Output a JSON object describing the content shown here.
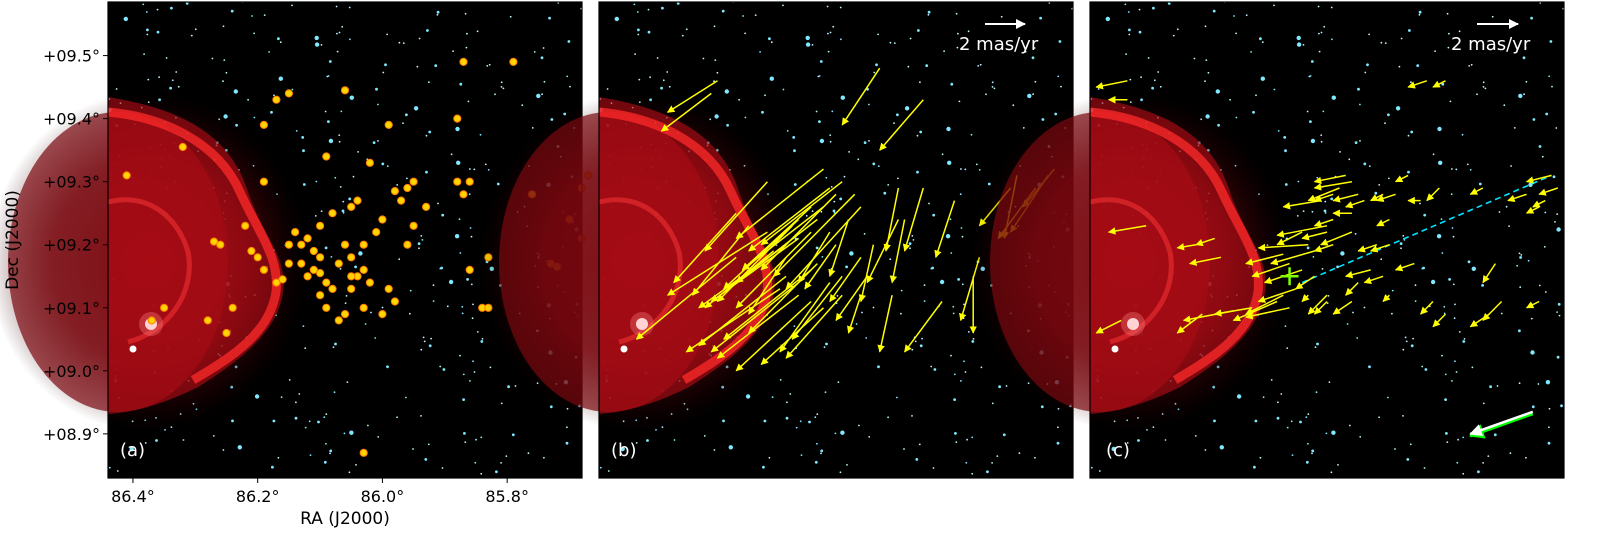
{
  "chart_data": {
    "type": "scatter",
    "xlabel": "RA (J2000)",
    "ylabel": "Dec (J2000)",
    "xlim": [
      86.44,
      85.68
    ],
    "ylim": [
      8.83,
      9.585
    ],
    "x_ticks": [
      86.4,
      86.2,
      86.0,
      85.8
    ],
    "x_tick_labels": [
      "86.4°",
      "86.2°",
      "86.0°",
      "85.8°"
    ],
    "y_ticks": [
      8.9,
      9.0,
      9.1,
      9.2,
      9.3,
      9.4,
      9.5
    ],
    "y_tick_labels": [
      "+08.9°",
      "+09.0°",
      "+09.1°",
      "+09.2°",
      "+09.3°",
      "+09.4°",
      "+09.5°"
    ],
    "colors": {
      "background": "#000000",
      "nebula": "#e0141e",
      "member_marker": "#ffd500",
      "marker_edge": "#ff7a00",
      "arrow": "#ffff00",
      "path_line": "#00e5ff",
      "bright_star_arrow": "#ffffff",
      "bright_star_arrow_alt": "#00ff00",
      "cross": "#7fff00"
    },
    "panels": [
      {
        "label": "(a)",
        "content": "member positions",
        "points": [
          [
            86.41,
            9.31
          ],
          [
            86.32,
            9.355
          ],
          [
            86.35,
            9.1
          ],
          [
            86.37,
            9.08
          ],
          [
            86.28,
            9.08
          ],
          [
            86.24,
            9.1
          ],
          [
            86.25,
            9.06
          ],
          [
            86.27,
            9.205
          ],
          [
            86.26,
            9.2
          ],
          [
            86.22,
            9.23
          ],
          [
            86.21,
            9.19
          ],
          [
            86.2,
            9.18
          ],
          [
            86.19,
            9.16
          ],
          [
            86.19,
            9.3
          ],
          [
            86.17,
            9.14
          ],
          [
            86.16,
            9.145
          ],
          [
            86.15,
            9.17
          ],
          [
            86.15,
            9.2
          ],
          [
            86.14,
            9.22
          ],
          [
            86.13,
            9.2
          ],
          [
            86.12,
            9.21
          ],
          [
            86.11,
            9.19
          ],
          [
            86.1,
            9.18
          ],
          [
            86.1,
            9.155
          ],
          [
            86.09,
            9.14
          ],
          [
            86.08,
            9.13
          ],
          [
            86.1,
            9.12
          ],
          [
            86.09,
            9.1
          ],
          [
            86.07,
            9.17
          ],
          [
            86.06,
            9.2
          ],
          [
            86.05,
            9.18
          ],
          [
            86.04,
            9.15
          ],
          [
            86.03,
            9.16
          ],
          [
            86.02,
            9.14
          ],
          [
            86.05,
            9.13
          ],
          [
            86.03,
            9.1
          ],
          [
            86.06,
            9.09
          ],
          [
            86.07,
            9.08
          ],
          [
            86.0,
            9.09
          ],
          [
            85.98,
            9.11
          ],
          [
            85.99,
            9.13
          ],
          [
            86.05,
            9.15
          ],
          [
            86.03,
            9.2
          ],
          [
            86.01,
            9.22
          ],
          [
            86.0,
            9.24
          ],
          [
            86.05,
            9.26
          ],
          [
            86.04,
            9.27
          ],
          [
            86.08,
            9.25
          ],
          [
            86.02,
            9.33
          ],
          [
            86.09,
            9.34
          ],
          [
            86.17,
            9.43
          ],
          [
            86.19,
            9.39
          ],
          [
            86.15,
            9.44
          ],
          [
            86.06,
            9.445
          ],
          [
            85.99,
            9.39
          ],
          [
            85.96,
            9.2
          ],
          [
            85.95,
            9.23
          ],
          [
            85.97,
            9.27
          ],
          [
            85.98,
            9.285
          ],
          [
            85.96,
            9.29
          ],
          [
            85.93,
            9.26
          ],
          [
            85.95,
            9.3
          ],
          [
            85.88,
            9.3
          ],
          [
            85.87,
            9.28
          ],
          [
            85.86,
            9.3
          ],
          [
            85.83,
            9.18
          ],
          [
            85.86,
            9.16
          ],
          [
            85.84,
            9.1
          ],
          [
            85.83,
            9.1
          ],
          [
            85.88,
            9.4
          ],
          [
            85.87,
            9.49
          ],
          [
            85.79,
            9.49
          ],
          [
            85.76,
            9.28
          ],
          [
            85.73,
            9.17
          ],
          [
            85.72,
            9.165
          ],
          [
            85.7,
            9.24
          ],
          [
            85.68,
            9.21
          ],
          [
            85.68,
            9.29
          ],
          [
            85.67,
            9.31
          ],
          [
            86.03,
            8.87
          ],
          [
            86.12,
            9.15
          ],
          [
            86.11,
            9.16
          ],
          [
            86.13,
            9.17
          ],
          [
            86.1,
            9.23
          ]
        ]
      },
      {
        "label": "(b)",
        "content": "proper motion vectors",
        "scale_bar": "2 mas/yr",
        "arrows": [
          [
            86.16,
            9.19,
            86.27,
            9.1
          ],
          [
            86.14,
            9.2,
            86.28,
            9.1
          ],
          [
            86.12,
            9.21,
            86.26,
            9.11
          ],
          [
            86.1,
            9.22,
            86.22,
            9.1
          ],
          [
            86.09,
            9.24,
            86.22,
            9.14
          ],
          [
            86.08,
            9.26,
            86.21,
            9.16
          ],
          [
            86.06,
            9.28,
            86.18,
            9.16
          ],
          [
            86.05,
            9.3,
            86.18,
            9.2
          ],
          [
            86.03,
            9.28,
            86.16,
            9.15
          ],
          [
            86.02,
            9.26,
            86.14,
            9.13
          ],
          [
            86.1,
            9.16,
            86.24,
            9.05
          ],
          [
            86.12,
            9.14,
            86.26,
            9.03
          ],
          [
            86.14,
            9.15,
            86.28,
            9.04
          ],
          [
            86.15,
            9.13,
            86.3,
            9.03
          ],
          [
            86.12,
            9.12,
            86.25,
            9.02
          ],
          [
            86.1,
            9.11,
            86.22,
            9.0
          ],
          [
            86.08,
            9.1,
            86.18,
            9.01
          ],
          [
            86.05,
            9.12,
            86.14,
            9.02
          ],
          [
            86.05,
            9.15,
            86.13,
            9.05
          ],
          [
            86.07,
            9.14,
            86.15,
            9.03
          ],
          [
            86.09,
            9.17,
            86.2,
            9.06
          ],
          [
            86.14,
            9.18,
            86.2,
            9.09
          ],
          [
            86.13,
            9.23,
            86.25,
            9.11
          ],
          [
            86.12,
            9.24,
            86.24,
            9.13
          ],
          [
            86.2,
            9.23,
            86.29,
            9.12
          ],
          [
            86.22,
            9.25,
            86.32,
            9.14
          ],
          [
            86.17,
            9.3,
            86.27,
            9.19
          ],
          [
            86.17,
            9.22,
            86.33,
            9.12
          ],
          [
            86.1,
            9.26,
            86.21,
            9.16
          ],
          [
            86.07,
            9.29,
            86.2,
            9.19
          ],
          [
            86.08,
            9.32,
            86.22,
            9.21
          ],
          [
            86.22,
            9.18,
            86.38,
            9.05
          ],
          [
            86.26,
            9.44,
            86.34,
            9.38
          ],
          [
            86.25,
            9.46,
            86.33,
            9.41
          ],
          [
            85.92,
            9.43,
            85.99,
            9.35
          ],
          [
            85.99,
            9.48,
            86.05,
            9.39
          ],
          [
            85.96,
            9.29,
            85.98,
            9.19
          ],
          [
            85.92,
            9.29,
            85.95,
            9.19
          ],
          [
            85.96,
            9.24,
            86.01,
            9.14
          ],
          [
            85.95,
            9.24,
            85.97,
            9.14
          ],
          [
            85.97,
            9.12,
            85.99,
            9.03
          ],
          [
            85.89,
            9.11,
            85.95,
            9.03
          ],
          [
            85.83,
            9.18,
            85.86,
            9.08
          ],
          [
            85.84,
            9.15,
            85.84,
            9.06
          ],
          [
            85.87,
            9.27,
            85.9,
            9.18
          ],
          [
            85.78,
            9.29,
            85.83,
            9.23
          ],
          [
            85.77,
            9.31,
            85.79,
            9.21
          ],
          [
            85.74,
            9.29,
            85.8,
            9.21
          ],
          [
            85.72,
            9.31,
            85.78,
            9.22
          ],
          [
            85.71,
            9.32,
            85.76,
            9.26
          ],
          [
            86.04,
            9.24,
            86.07,
            9.15
          ],
          [
            86.02,
            9.18,
            86.07,
            9.11
          ],
          [
            86.01,
            9.15,
            86.06,
            9.08
          ],
          [
            86.06,
            9.2,
            86.11,
            9.13
          ],
          [
            86.07,
            9.22,
            86.12,
            9.14
          ],
          [
            86.02,
            9.12,
            86.04,
            9.06
          ],
          [
            86.0,
            9.2,
            86.02,
            9.11
          ]
        ]
      },
      {
        "label": "(c)",
        "content": "relative proper motion vectors",
        "scale_bar": "2 mas/yr",
        "cross": [
          86.12,
          9.15
        ],
        "path_line": [
          [
            86.1,
            9.14
          ],
          [
            85.7,
            9.31
          ]
        ],
        "arrows": [
          [
            86.06,
            9.23,
            86.14,
            9.215
          ],
          [
            86.08,
            9.19,
            86.15,
            9.17
          ],
          [
            86.09,
            9.2,
            86.17,
            9.195
          ],
          [
            86.13,
            9.185,
            86.19,
            9.17
          ],
          [
            86.12,
            9.17,
            86.18,
            9.15
          ],
          [
            86.1,
            9.16,
            86.16,
            9.14
          ],
          [
            86.11,
            9.13,
            86.17,
            9.11
          ],
          [
            86.13,
            9.12,
            86.19,
            9.09
          ],
          [
            86.12,
            9.1,
            86.19,
            9.085
          ],
          [
            86.14,
            9.11,
            86.21,
            9.08
          ],
          [
            86.18,
            9.1,
            86.24,
            9.09
          ],
          [
            86.21,
            9.095,
            86.29,
            9.08
          ],
          [
            86.24,
            9.21,
            86.27,
            9.2
          ],
          [
            86.27,
            9.2,
            86.3,
            9.195
          ],
          [
            86.23,
            9.18,
            86.28,
            9.17
          ],
          [
            86.1,
            9.22,
            86.14,
            9.2
          ],
          [
            86.05,
            9.2,
            86.08,
            9.19
          ],
          [
            86.02,
            9.22,
            86.07,
            9.2
          ],
          [
            86.07,
            9.27,
            86.13,
            9.26
          ],
          [
            86.05,
            9.28,
            86.08,
            9.27
          ],
          [
            86.04,
            9.29,
            86.09,
            9.27
          ],
          [
            86.02,
            9.3,
            86.08,
            9.29
          ],
          [
            86.03,
            9.31,
            86.08,
            9.3
          ],
          [
            86.01,
            9.28,
            86.05,
            9.27
          ],
          [
            86.0,
            9.27,
            86.03,
            9.26
          ],
          [
            86.02,
            9.25,
            86.05,
            9.25
          ],
          [
            86.08,
            9.15,
            86.11,
            9.13
          ],
          [
            86.06,
            9.12,
            86.09,
            9.09
          ],
          [
            86.06,
            9.11,
            86.08,
            9.09
          ],
          [
            86.09,
            9.12,
            86.1,
            9.11
          ],
          [
            86.06,
            9.22,
            86.1,
            9.21
          ],
          [
            86.05,
            9.24,
            86.08,
            9.23
          ],
          [
            86.26,
            9.09,
            86.3,
            9.06
          ],
          [
            86.35,
            9.23,
            86.41,
            9.22
          ],
          [
            86.39,
            9.08,
            86.43,
            9.06
          ],
          [
            86.38,
            9.46,
            86.43,
            9.45
          ],
          [
            86.38,
            9.43,
            86.41,
            9.43
          ],
          [
            85.98,
            9.2,
            86.01,
            9.19
          ],
          [
            85.97,
            9.15,
            86.0,
            9.14
          ],
          [
            85.96,
            9.2,
            85.99,
            9.19
          ],
          [
            85.96,
            9.24,
            85.98,
            9.23
          ],
          [
            85.97,
            9.28,
            85.99,
            9.27
          ],
          [
            85.93,
            9.31,
            85.95,
            9.3
          ],
          [
            85.95,
            9.28,
            85.98,
            9.27
          ],
          [
            85.91,
            9.27,
            85.93,
            9.27
          ],
          [
            85.96,
            9.12,
            85.97,
            9.11
          ],
          [
            85.88,
            9.29,
            85.9,
            9.27
          ],
          [
            85.89,
            9.11,
            85.91,
            9.09
          ],
          [
            85.87,
            9.09,
            85.89,
            9.07
          ],
          [
            85.87,
            9.46,
            85.89,
            9.45
          ],
          [
            85.9,
            9.46,
            85.93,
            9.45
          ],
          [
            85.81,
            9.29,
            85.83,
            9.28
          ],
          [
            85.74,
            9.28,
            85.77,
            9.27
          ],
          [
            85.72,
            9.26,
            85.74,
            9.25
          ],
          [
            85.71,
            9.27,
            85.73,
            9.26
          ],
          [
            85.7,
            9.31,
            85.74,
            9.3
          ],
          [
            85.69,
            9.29,
            85.72,
            9.28
          ],
          [
            86.01,
            9.14,
            86.03,
            9.12
          ],
          [
            86.02,
            9.11,
            86.05,
            9.09
          ],
          [
            85.99,
            9.16,
            86.03,
            9.15
          ],
          [
            85.92,
            9.17,
            85.95,
            9.16
          ],
          [
            85.79,
            9.17,
            85.81,
            9.14
          ],
          [
            85.72,
            9.11,
            85.74,
            9.1
          ],
          [
            85.8,
            9.09,
            85.83,
            9.07
          ],
          [
            85.78,
            9.11,
            85.81,
            9.08
          ]
        ],
        "bright_star_arrow": [
          85.73,
          8.935,
          85.83,
          8.9
        ]
      }
    ]
  }
}
